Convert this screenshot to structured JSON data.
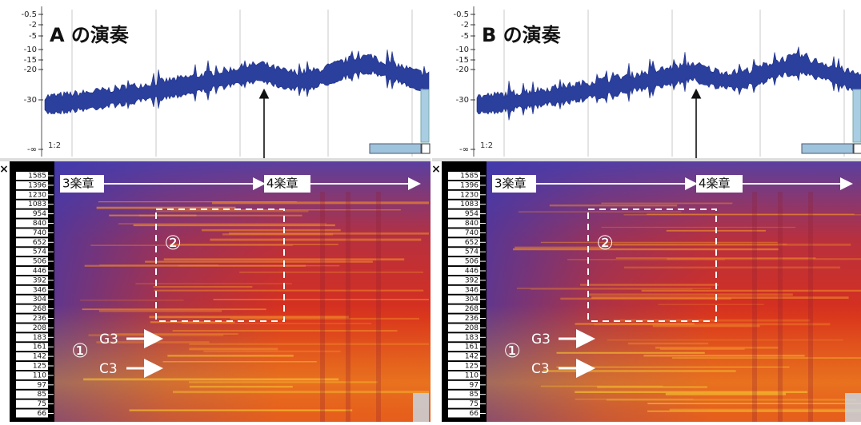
{
  "panels": [
    {
      "title": "A の演奏",
      "db_labels": [
        "-0.5",
        "-2",
        "-5",
        "-10",
        "-15",
        "-20",
        "-30",
        "-∞"
      ],
      "position_marker": "1:2",
      "close": "×",
      "freq_labels": [
        1585,
        1396,
        1230,
        1083,
        954,
        840,
        740,
        652,
        574,
        506,
        446,
        392,
        346,
        304,
        268,
        236,
        208,
        183,
        161,
        142,
        125,
        110,
        97,
        85,
        75,
        66
      ],
      "movement_start": "3楽章",
      "movement_next": "4楽章",
      "region_1": "①",
      "region_2": "②",
      "note_upper": "G3",
      "note_lower": "C3"
    },
    {
      "title": "B の演奏",
      "db_labels": [
        "-0.5",
        "-2",
        "-5",
        "-10",
        "-15",
        "-20",
        "-30",
        "-∞"
      ],
      "position_marker": "1:2",
      "close": "×",
      "freq_labels": [
        1585,
        1396,
        1230,
        1083,
        954,
        840,
        740,
        652,
        574,
        506,
        446,
        392,
        346,
        304,
        268,
        236,
        208,
        183,
        161,
        142,
        125,
        110,
        97,
        85,
        75,
        66
      ],
      "movement_start": "3楽章",
      "movement_next": "4楽章",
      "region_1": "①",
      "region_2": "②",
      "note_upper": "G3",
      "note_lower": "C3"
    }
  ]
}
